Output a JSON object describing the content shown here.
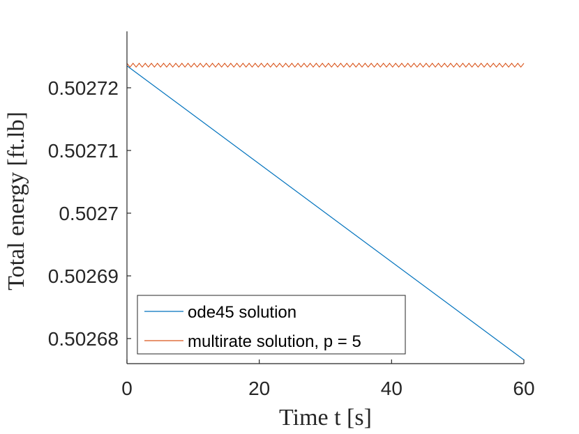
{
  "chart_data": {
    "type": "line",
    "title": "",
    "xlabel": "Time t [s]",
    "ylabel": "Total energy [ft.lb]",
    "xlim": [
      0,
      60
    ],
    "ylim": [
      0.502676,
      0.502729
    ],
    "xticks": [
      0,
      20,
      40,
      60
    ],
    "xtick_labels": [
      "0",
      "20",
      "40",
      "60"
    ],
    "yticks": [
      0.50268,
      0.50269,
      0.5027,
      0.50271,
      0.50272
    ],
    "ytick_labels": [
      "0.50268",
      "0.50269",
      "0.5027",
      "0.50271",
      "0.50272"
    ],
    "grid": false,
    "legend_position": "bottom-left",
    "series": [
      {
        "name": "ode45 solution",
        "color": "#0072BD",
        "x": [
          0,
          60
        ],
        "y": [
          0.5027235,
          0.5026766
        ]
      },
      {
        "name": "multirate solution, p = 5",
        "color": "#D95319",
        "x_range": [
          0,
          60
        ],
        "mean": 0.5027236,
        "oscillation_amplitude": 3e-07,
        "oscillation_cycles": 65
      }
    ]
  }
}
